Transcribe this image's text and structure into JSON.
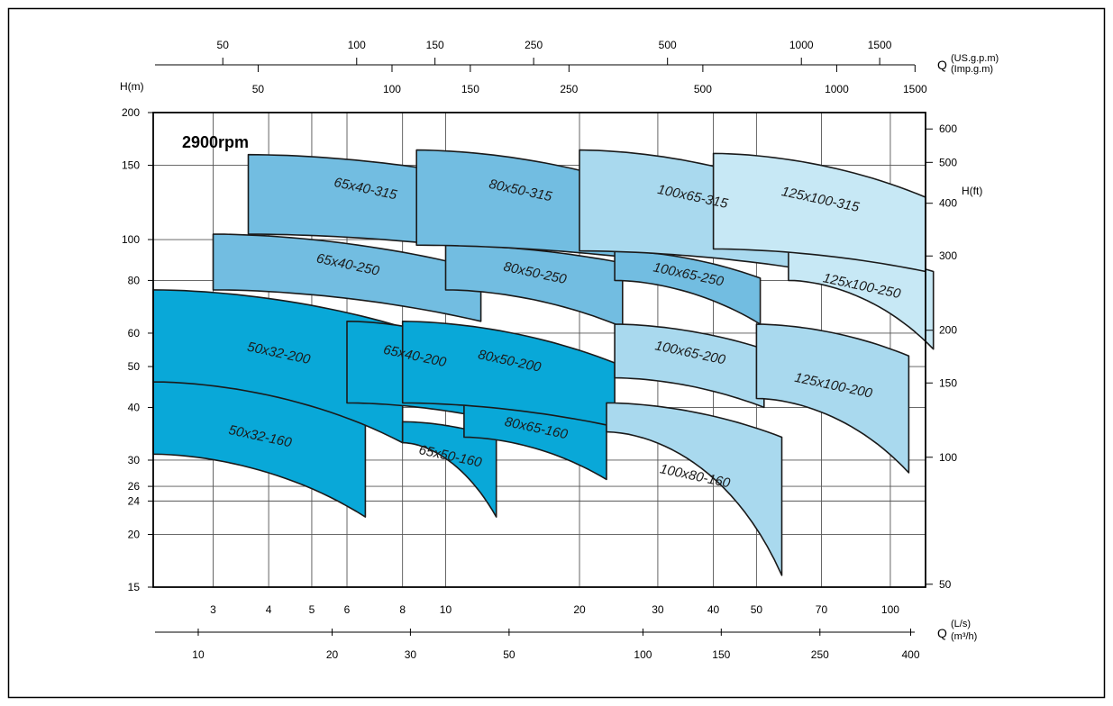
{
  "chart_data": {
    "type": "area",
    "title": "2900rpm",
    "x_axis_bottom": {
      "unit_label": "Q",
      "unit_ls": "(L/s)",
      "unit_m3h": "(m³/h)",
      "ticks_ls": [
        3,
        4,
        5,
        6,
        8,
        10,
        20,
        30,
        40,
        50,
        70,
        100
      ],
      "ticks_m3h": [
        10,
        20,
        30,
        50,
        100,
        150,
        250,
        400
      ],
      "range_ls": [
        2.2,
        120
      ],
      "scale": "log"
    },
    "x_axis_top": {
      "unit_label": "Q",
      "unit_usgpm": "(US.g.p.m)",
      "unit_impgpm": "(Imp.g.m)",
      "ticks_usgpm": [
        50,
        100,
        150,
        250,
        500,
        1000,
        1500
      ],
      "ticks_impgpm": [
        50,
        100,
        150,
        250,
        500,
        1000,
        1500
      ]
    },
    "y_axis_left": {
      "label": "H(m)",
      "ticks": [
        15,
        20,
        24,
        26,
        30,
        40,
        50,
        60,
        80,
        100,
        150,
        200
      ],
      "range": [
        15,
        200
      ],
      "scale": "log"
    },
    "y_axis_right": {
      "label": "H(ft)",
      "ticks": [
        50,
        100,
        150,
        200,
        300,
        400,
        500,
        600
      ]
    },
    "series": [
      {
        "name": "50x32-160",
        "color": "#09a8d8",
        "q": [
          2.2,
          6.6
        ],
        "h_max": [
          46,
          41
        ],
        "h_min": [
          31,
          22
        ]
      },
      {
        "name": "50x32-200",
        "color": "#09a8d8",
        "q": [
          2.2,
          8.0
        ],
        "h_max": [
          76,
          62
        ],
        "h_min": [
          46,
          33
        ]
      },
      {
        "name": "65x50-160",
        "color": "#09a8d8",
        "q": [
          8.0,
          13
        ],
        "h_max": [
          37,
          34
        ],
        "h_min": [
          33,
          22
        ]
      },
      {
        "name": "65x40-200",
        "color": "#09a8d8",
        "q": [
          6.0,
          12
        ],
        "h_max": [
          64,
          56
        ],
        "h_min": [
          41,
          38
        ]
      },
      {
        "name": "80x65-160",
        "color": "#09a8d8",
        "q": [
          11,
          23
        ],
        "h_max": [
          41,
          37
        ],
        "h_min": [
          34,
          27
        ]
      },
      {
        "name": "80x50-200",
        "color": "#09a8d8",
        "q": [
          8.0,
          24
        ],
        "h_max": [
          64,
          51
        ],
        "h_min": [
          41,
          36
        ]
      },
      {
        "name": "65x40-250",
        "color": "#72bde1",
        "q": [
          3.0,
          12
        ],
        "h_max": [
          103,
          85
        ],
        "h_min": [
          76,
          64
        ]
      },
      {
        "name": "65x40-315",
        "color": "#72bde1",
        "q": [
          3.6,
          12
        ],
        "h_max": [
          159,
          140
        ],
        "h_min": [
          103,
          95
        ]
      },
      {
        "name": "80x50-250",
        "color": "#72bde1",
        "q": [
          10,
          25
        ],
        "h_max": [
          97,
          88
        ],
        "h_min": [
          76,
          62
        ]
      },
      {
        "name": "80x50-315",
        "color": "#72bde1",
        "q": [
          8.6,
          25
        ],
        "h_max": [
          163,
          137
        ],
        "h_min": [
          97,
          91
        ]
      },
      {
        "name": "100x65-250",
        "color": "#72bde1",
        "q": [
          24,
          51
        ],
        "h_max": [
          94,
          81
        ],
        "h_min": [
          80,
          63
        ]
      },
      {
        "name": "100x65-200",
        "color": "#a9d9ee",
        "q": [
          24,
          52
        ],
        "h_max": [
          63,
          55
        ],
        "h_min": [
          47,
          40
        ]
      },
      {
        "name": "100x80-160",
        "color": "#a9d9ee",
        "q": [
          23,
          57
        ],
        "h_max": [
          41,
          34
        ],
        "h_min": [
          35,
          16
        ]
      },
      {
        "name": "100x65-315",
        "color": "#a9d9ee",
        "q": [
          20,
          64
        ],
        "h_max": [
          163,
          128
        ],
        "h_min": [
          94,
          85
        ]
      },
      {
        "name": "125x100-200",
        "color": "#a9d9ee",
        "q": [
          50,
          110
        ],
        "h_max": [
          63,
          53
        ],
        "h_min": [
          42,
          28
        ]
      },
      {
        "name": "125x100-250",
        "color": "#c7e8f5",
        "q": [
          59,
          125
        ],
        "h_max": [
          95,
          84
        ],
        "h_min": [
          80,
          55
        ]
      },
      {
        "name": "125x100-315",
        "color": "#c7e8f5",
        "q": [
          40,
          120
        ],
        "h_max": [
          160,
          126
        ],
        "h_min": [
          95,
          84
        ]
      }
    ]
  }
}
